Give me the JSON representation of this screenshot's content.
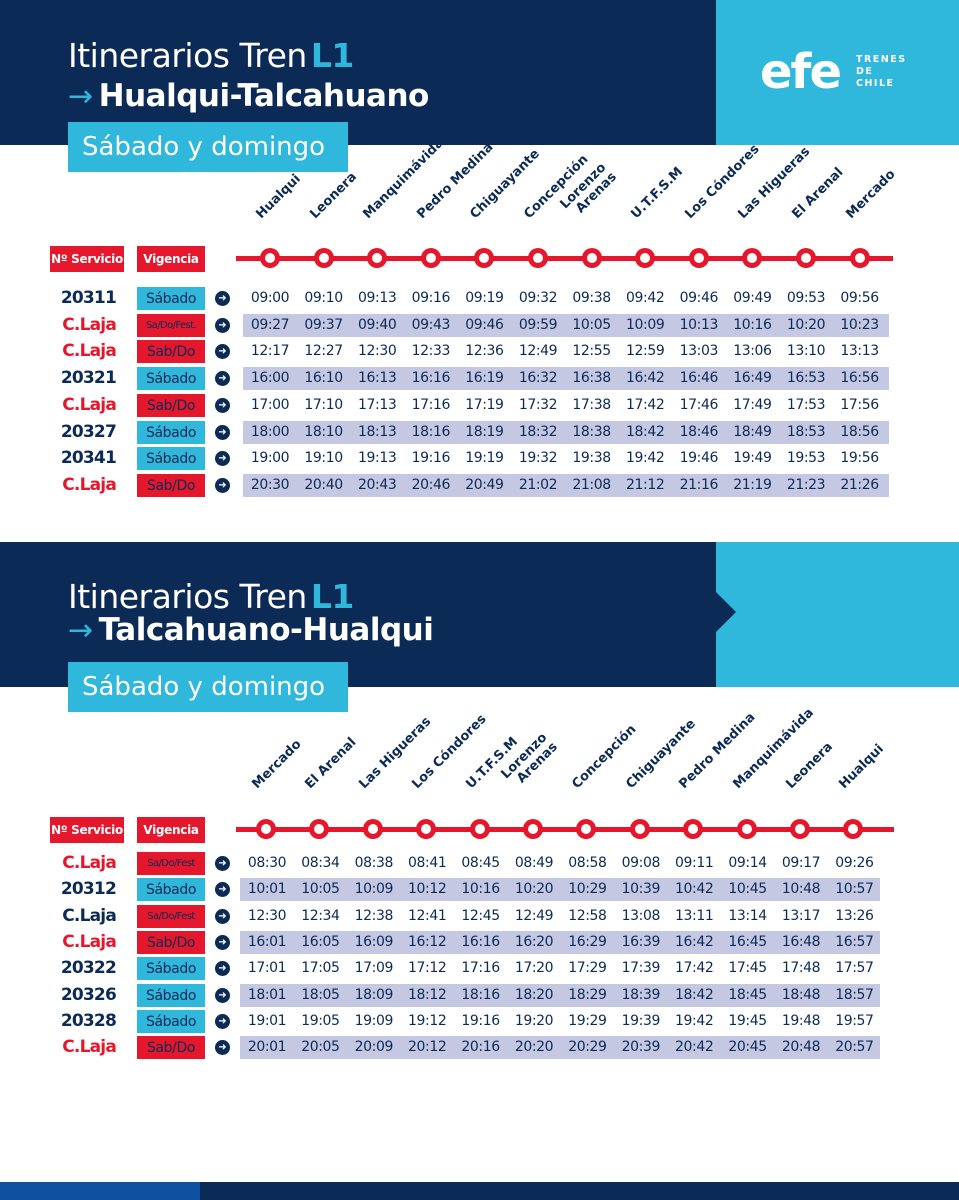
{
  "brand": {
    "logo_text": "efe",
    "logo_sub": [
      "TRENES",
      "DE",
      "CHILE"
    ],
    "colors": {
      "navy": "#0c2a56",
      "cyan": "#2fb7dc",
      "red": "#e4172c",
      "band": "#c5c8e2"
    }
  },
  "labels": {
    "service_header": "Nº Servicio",
    "validity_header": "Vigencia",
    "go_icon": "arrow-right-circle-icon"
  },
  "sections": [
    {
      "title_prefix": "Itinerarios Tren",
      "title_line": "L1",
      "arrow": "→",
      "route": "Hualqui-Talcahuano",
      "days": "Sábado y domingo",
      "stations": [
        "Hualqui",
        "Leonera",
        "Manquimávida",
        "Pedro Medina",
        "Chiguayante",
        "Concepción",
        "Lorenzo\nArenas",
        "U.T.F.S.M",
        "Los Cóndores",
        "Las Higueras",
        "El Arenal",
        "Mercado"
      ],
      "rows": [
        {
          "service": "20311",
          "service_color": "blue",
          "validity": "Sábado",
          "validity_color": "cyan",
          "banded": false,
          "times": [
            "09:00",
            "09:10",
            "09:13",
            "09:16",
            "09:19",
            "09:32",
            "09:38",
            "09:42",
            "09:46",
            "09:49",
            "09:53",
            "09:56"
          ]
        },
        {
          "service": "C.Laja",
          "service_color": "red",
          "validity": "Sa/Do/Fest.",
          "validity_color": "red-small",
          "banded": true,
          "times": [
            "09:27",
            "09:37",
            "09:40",
            "09:43",
            "09:46",
            "09:59",
            "10:05",
            "10:09",
            "10:13",
            "10:16",
            "10:20",
            "10:23"
          ]
        },
        {
          "service": "C.Laja",
          "service_color": "red",
          "validity": "Sab/Do",
          "validity_color": "red",
          "banded": false,
          "times": [
            "12:17",
            "12:27",
            "12:30",
            "12:33",
            "12:36",
            "12:49",
            "12:55",
            "12:59",
            "13:03",
            "13:06",
            "13:10",
            "13:13"
          ]
        },
        {
          "service": "20321",
          "service_color": "blue",
          "validity": "Sábado",
          "validity_color": "cyan",
          "banded": true,
          "times": [
            "16:00",
            "16:10",
            "16:13",
            "16:16",
            "16:19",
            "16:32",
            "16:38",
            "16:42",
            "16:46",
            "16:49",
            "16:53",
            "16:56"
          ]
        },
        {
          "service": "C.Laja",
          "service_color": "red",
          "validity": "Sab/Do",
          "validity_color": "red",
          "banded": false,
          "times": [
            "17:00",
            "17:10",
            "17:13",
            "17:16",
            "17:19",
            "17:32",
            "17:38",
            "17:42",
            "17:46",
            "17:49",
            "17:53",
            "17:56"
          ]
        },
        {
          "service": "20327",
          "service_color": "blue",
          "validity": "Sábado",
          "validity_color": "cyan",
          "banded": true,
          "times": [
            "18:00",
            "18:10",
            "18:13",
            "18:16",
            "18:19",
            "18:32",
            "18:38",
            "18:42",
            "18:46",
            "18:49",
            "18:53",
            "18:56"
          ]
        },
        {
          "service": "20341",
          "service_color": "blue",
          "validity": "Sábado",
          "validity_color": "cyan",
          "banded": false,
          "times": [
            "19:00",
            "19:10",
            "19:13",
            "19:16",
            "19:19",
            "19:32",
            "19:38",
            "19:42",
            "19:46",
            "19:49",
            "19:53",
            "19:56"
          ]
        },
        {
          "service": "C.Laja",
          "service_color": "red",
          "validity": "Sab/Do",
          "validity_color": "red",
          "banded": true,
          "times": [
            "20:30",
            "20:40",
            "20:43",
            "20:46",
            "20:49",
            "21:02",
            "21:08",
            "21:12",
            "21:16",
            "21:19",
            "21:23",
            "21:26"
          ]
        }
      ]
    },
    {
      "title_prefix": "Itinerarios Tren",
      "title_line": "L1",
      "arrow": "→",
      "route": "Talcahuano-Hualqui",
      "days": "Sábado y domingo",
      "stations": [
        "Mercado",
        "El Arenal",
        "Las Higueras",
        "Los Cóndores",
        "U.T.F.S.M",
        "Lorenzo\nArenas",
        "Concepción",
        "Chiguayante",
        "Pedro Medina",
        "Manquimávida",
        "Leonera",
        "Hualqui"
      ],
      "rows": [
        {
          "service": "C.Laja",
          "service_color": "red",
          "validity": "Sa/Do/Fest",
          "validity_color": "red-small",
          "banded": false,
          "times": [
            "08:30",
            "08:34",
            "08:38",
            "08:41",
            "08:45",
            "08:49",
            "08:58",
            "09:08",
            "09:11",
            "09:14",
            "09:17",
            "09:26"
          ]
        },
        {
          "service": "20312",
          "service_color": "blue",
          "validity": "Sábado",
          "validity_color": "cyan",
          "banded": true,
          "times": [
            "10:01",
            "10:05",
            "10:09",
            "10:12",
            "10:16",
            "10:20",
            "10:29",
            "10:39",
            "10:42",
            "10:45",
            "10:48",
            "10:57"
          ]
        },
        {
          "service": "C.Laja",
          "service_color": "blue",
          "validity": "Sa/Do/Fest",
          "validity_color": "red-small",
          "banded": false,
          "times": [
            "12:30",
            "12:34",
            "12:38",
            "12:41",
            "12:45",
            "12:49",
            "12:58",
            "13:08",
            "13:11",
            "13:14",
            "13:17",
            "13:26"
          ]
        },
        {
          "service": "C.Laja",
          "service_color": "red",
          "validity": "Sab/Do",
          "validity_color": "red",
          "banded": true,
          "times": [
            "16:01",
            "16:05",
            "16:09",
            "16:12",
            "16:16",
            "16:20",
            "16:29",
            "16:39",
            "16:42",
            "16:45",
            "16:48",
            "16:57"
          ]
        },
        {
          "service": "20322",
          "service_color": "blue",
          "validity": "Sábado",
          "validity_color": "cyan",
          "banded": false,
          "times": [
            "17:01",
            "17:05",
            "17:09",
            "17:12",
            "17:16",
            "17:20",
            "17:29",
            "17:39",
            "17:42",
            "17:45",
            "17:48",
            "17:57"
          ]
        },
        {
          "service": "20326",
          "service_color": "blue",
          "validity": "Sábado",
          "validity_color": "cyan",
          "banded": true,
          "times": [
            "18:01",
            "18:05",
            "18:09",
            "18:12",
            "18:16",
            "18:20",
            "18:29",
            "18:39",
            "18:42",
            "18:45",
            "18:48",
            "18:57"
          ]
        },
        {
          "service": "20328",
          "service_color": "blue",
          "validity": "Sábado",
          "validity_color": "cyan",
          "banded": false,
          "times": [
            "19:01",
            "19:05",
            "19:09",
            "19:12",
            "19:16",
            "19:20",
            "19:29",
            "19:39",
            "19:42",
            "19:45",
            "19:48",
            "19:57"
          ]
        },
        {
          "service": "C.Laja",
          "service_color": "red",
          "validity": "Sab/Do",
          "validity_color": "red",
          "banded": true,
          "times": [
            "20:01",
            "20:05",
            "20:09",
            "20:12",
            "20:16",
            "20:20",
            "20:29",
            "20:39",
            "20:42",
            "20:45",
            "20:48",
            "20:57"
          ]
        }
      ]
    }
  ]
}
